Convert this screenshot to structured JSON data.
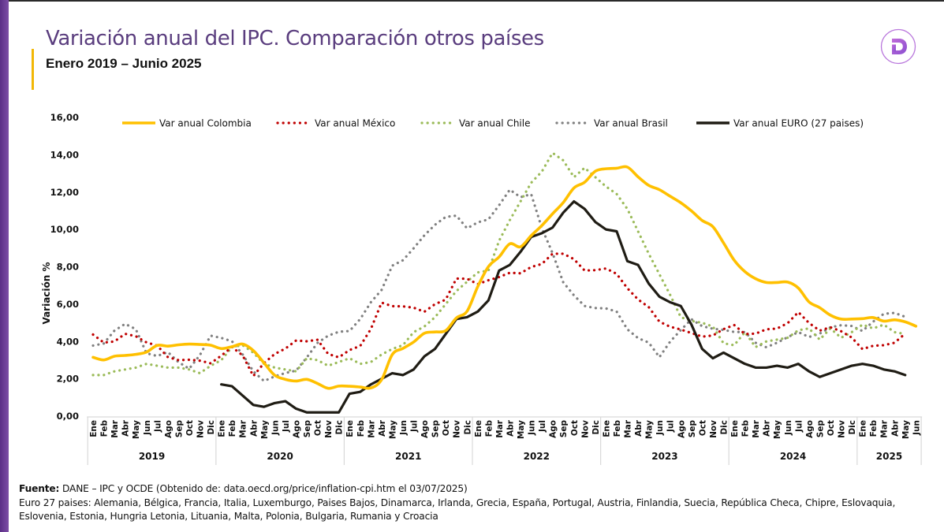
{
  "header": {
    "title": "Variación anual del IPC. Comparación otros países",
    "subtitle": "Enero 2019 – Junio 2025",
    "logo_icon": "d-letter-logo-icon",
    "colors": {
      "title": "#5a3d7e",
      "accent": "#f2b705",
      "sidebar": "#6b3d96",
      "logo": "#a855c7"
    }
  },
  "footer": {
    "source_label": "Fuente:",
    "source_text": " DANE – IPC y OCDE (Obtenido de: data.oecd.org/price/inflation-cpi.htm el 03/07/2025)",
    "euro_note": "Euro 27 paises: Alemania, Bélgica, Francia, Italia, Luxemburgo, Paises Bajos, Dinamarca, Irlanda, Grecia, España, Portugal, Austria, Finlandia, Suecia, República Checa, Chipre, Eslovaquia, Eslovenia, Estonia, Hungria Letonia, Lituania, Malta, Polonia, Bulgaria, Rumania y Croacia"
  },
  "chart_data": {
    "type": "line",
    "title": "Variación anual del IPC. Comparación otros países",
    "xlabel": "",
    "ylabel": "Variación %",
    "ylim": [
      0,
      16
    ],
    "yticks": [
      "0,00",
      "2,00",
      "4,00",
      "6,00",
      "8,00",
      "10,00",
      "12,00",
      "14,00",
      "16,00"
    ],
    "grid": false,
    "legend_position": "top",
    "months": [
      "Ene",
      "Feb",
      "Mar",
      "Abr",
      "May",
      "Jun",
      "Jul",
      "Ago",
      "Sep",
      "Oct",
      "Nov",
      "Dic"
    ],
    "years": [
      "2019",
      "2020",
      "2021",
      "2022",
      "2023",
      "2024",
      "2025"
    ],
    "months_in_last_year": 6,
    "series": [
      {
        "name": "Var anual Colombia",
        "style": "solid",
        "color": "#ffc000",
        "start_index": 0,
        "values": [
          3.15,
          3.01,
          3.21,
          3.25,
          3.31,
          3.43,
          3.79,
          3.75,
          3.82,
          3.86,
          3.84,
          3.8,
          3.62,
          3.72,
          3.86,
          3.51,
          2.85,
          2.19,
          1.97,
          1.88,
          1.97,
          1.75,
          1.49,
          1.61,
          1.6,
          1.56,
          1.51,
          1.95,
          3.3,
          3.63,
          3.97,
          4.44,
          4.51,
          4.58,
          5.26,
          5.62,
          6.94,
          8.01,
          8.53,
          9.23,
          9.07,
          9.67,
          10.21,
          10.84,
          11.44,
          12.22,
          12.53,
          13.12,
          13.25,
          13.28,
          13.34,
          12.82,
          12.36,
          12.13,
          11.78,
          11.43,
          10.99,
          10.48,
          10.15,
          9.28,
          8.35,
          7.74,
          7.36,
          7.16,
          7.16,
          7.18,
          6.86,
          6.12,
          5.81,
          5.41,
          5.2,
          5.2,
          5.22,
          5.28,
          5.09,
          5.16,
          5.05,
          4.82
        ]
      },
      {
        "name": "Var anual México",
        "style": "dotted",
        "color": "#c00000",
        "start_index": 0,
        "values": [
          4.37,
          3.94,
          4.0,
          4.41,
          4.28,
          3.95,
          3.78,
          3.16,
          3.0,
          3.02,
          2.97,
          2.83,
          3.24,
          3.7,
          3.25,
          2.15,
          2.84,
          3.33,
          3.62,
          4.05,
          4.01,
          4.09,
          3.33,
          3.15,
          3.54,
          3.76,
          4.67,
          6.08,
          5.89,
          5.88,
          5.81,
          5.59,
          6.0,
          6.24,
          7.37,
          7.36,
          7.07,
          7.28,
          7.45,
          7.68,
          7.65,
          7.99,
          8.15,
          8.7,
          8.7,
          8.41,
          7.8,
          7.82,
          7.91,
          7.62,
          6.85,
          6.25,
          5.84,
          5.06,
          4.79,
          4.64,
          4.45,
          4.26,
          4.32,
          4.66,
          4.88,
          4.4,
          4.42,
          4.65,
          4.69,
          4.98,
          5.57,
          4.99,
          4.58,
          4.76,
          4.55,
          4.21,
          3.59,
          3.77,
          3.8,
          3.93,
          4.42
        ]
      },
      {
        "name": "Var anual Chile",
        "style": "dotted",
        "color": "#9bbb59",
        "start_index": 0,
        "values": [
          2.2,
          2.2,
          2.4,
          2.5,
          2.6,
          2.8,
          2.7,
          2.6,
          2.6,
          2.5,
          2.3,
          2.7,
          3.0,
          3.7,
          3.8,
          3.4,
          2.8,
          2.6,
          2.5,
          2.4,
          3.1,
          3.0,
          2.7,
          2.9,
          3.1,
          2.8,
          2.9,
          3.3,
          3.6,
          3.8,
          4.5,
          4.8,
          5.3,
          6.0,
          6.7,
          7.2,
          7.7,
          7.8,
          9.4,
          10.5,
          11.5,
          12.5,
          13.1,
          14.1,
          13.7,
          12.8,
          13.3,
          12.8,
          12.3,
          11.9,
          11.1,
          9.9,
          8.7,
          7.6,
          6.5,
          5.3,
          5.1,
          5.0,
          4.8,
          3.9,
          3.8,
          4.5,
          3.7,
          4.0,
          4.1,
          4.2,
          4.6,
          4.7,
          4.1,
          4.7,
          4.2,
          4.5,
          4.9,
          4.7,
          4.9,
          4.5,
          4.4
        ]
      },
      {
        "name": "Var anual Brasil",
        "style": "dotted",
        "color": "#808080",
        "start_index": 0,
        "values": [
          3.78,
          3.89,
          4.58,
          4.94,
          4.66,
          3.37,
          3.22,
          3.43,
          2.89,
          2.54,
          3.27,
          4.31,
          4.19,
          4.01,
          3.3,
          2.4,
          1.88,
          2.13,
          2.31,
          2.44,
          3.14,
          3.92,
          4.31,
          4.52,
          4.56,
          5.2,
          6.1,
          6.76,
          8.06,
          8.35,
          8.99,
          9.68,
          10.25,
          10.67,
          10.74,
          10.06,
          10.38,
          10.54,
          11.3,
          12.13,
          11.73,
          11.89,
          10.07,
          8.73,
          7.17,
          6.47,
          5.9,
          5.79,
          5.77,
          5.6,
          4.65,
          4.18,
          3.94,
          3.16,
          3.99,
          4.61,
          5.19,
          4.82,
          4.68,
          4.62,
          4.51,
          4.5,
          3.93,
          3.69,
          3.93,
          4.23,
          4.5,
          4.24,
          4.42,
          4.76,
          4.87,
          4.83,
          4.56,
          5.06,
          5.48,
          5.53,
          5.32
        ]
      },
      {
        "name": "Var anual EURO (27 paises)",
        "style": "solid",
        "color": "#1f1c14",
        "start_index": 12,
        "values": [
          1.7,
          1.6,
          1.1,
          0.6,
          0.5,
          0.7,
          0.8,
          0.4,
          0.2,
          0.2,
          0.2,
          0.2,
          1.2,
          1.3,
          1.7,
          2.0,
          2.3,
          2.2,
          2.5,
          3.2,
          3.6,
          4.4,
          5.2,
          5.3,
          5.6,
          6.2,
          7.8,
          8.1,
          8.8,
          9.6,
          9.8,
          10.1,
          10.9,
          11.5,
          11.1,
          10.4,
          10.0,
          9.9,
          8.3,
          8.1,
          7.1,
          6.4,
          6.1,
          5.9,
          4.9,
          3.6,
          3.1,
          3.4,
          3.1,
          2.8,
          2.6,
          2.6,
          2.7,
          2.6,
          2.8,
          2.4,
          2.1,
          2.3,
          2.5,
          2.7,
          2.8,
          2.7,
          2.5,
          2.4,
          2.2
        ]
      }
    ]
  }
}
